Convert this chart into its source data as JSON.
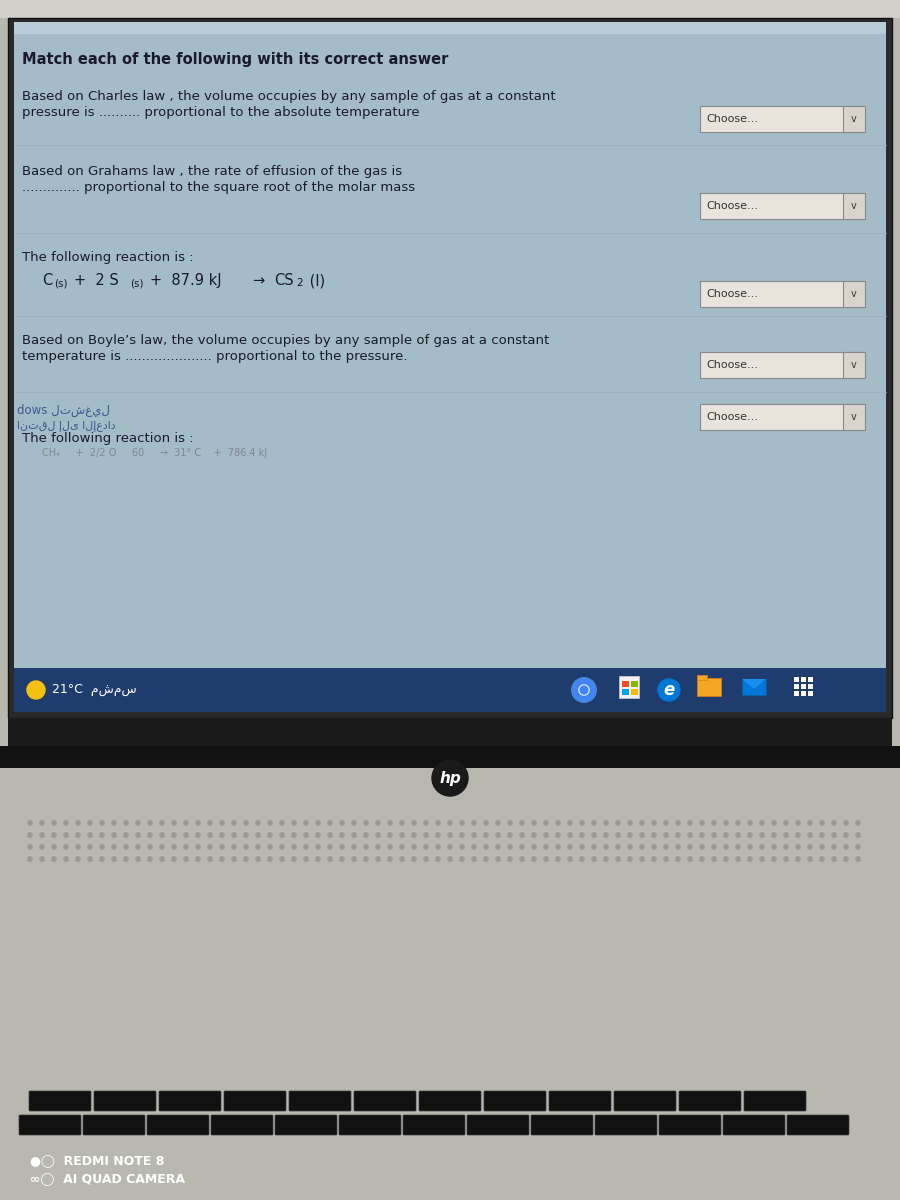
{
  "bg_outer_color": "#8a9ea8",
  "screen_bg": "#a4bcc8",
  "screen_top_strip": "#c8d8e0",
  "title": "Match each of the following with its correct answer",
  "q1_line1": "Based on Charles law , the volume occupies by any sample of gas at a constant",
  "q1_line2": "pressure is .......... proportional to the absolute temperature",
  "q2_line1": "Based on Grahams law , the rate of effusion of the gas is",
  "q2_line2": ".............. proportional to the square root of the molar mass",
  "q3_line1": "The following reaction is :",
  "q4_line1": "Based on Boyle’s law, the volume occupies by any sample of gas at a constant",
  "q4_line2": "temperature is ..................... proportional to the pressure.",
  "q5_line1": "The following reaction is :",
  "dows_text": "dows لتشغيل",
  "arabic_text2": "انتقل إلى الإعداد",
  "choose_text": "Choose...",
  "taskbar_color": "#1e3d6e",
  "taskbar_text": "21°C  مشمس",
  "laptop_body_color": "#b8b8b0",
  "laptop_bezel_color": "#1a1a1a",
  "hp_text": "hp",
  "redmi_text": "●◯  REDMI NOTE 8",
  "camera_text": "∞◯  AI QUAD CAMERA",
  "choose_bg": "#e8e4dc",
  "choose_border": "#888888",
  "text_color": "#1a1a2a",
  "title_fontsize": 10.5,
  "body_fontsize": 9.5,
  "small_fontsize": 7.5
}
